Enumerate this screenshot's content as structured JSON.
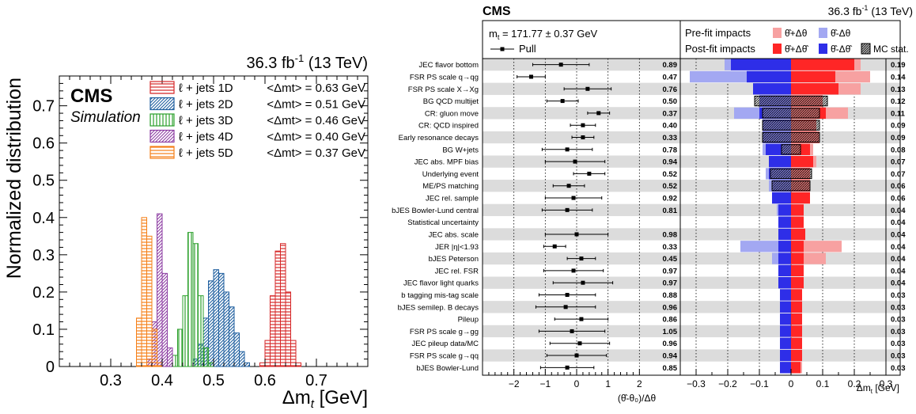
{
  "chart_data": [
    {
      "type": "histogram",
      "experiment": "CMS",
      "subtitle": "Simulation",
      "lumi": "36.3 fb",
      "lumi_exp": "-1",
      "energy": " (13 TeV)",
      "ylabel": "Normalized distribution",
      "xlabel_main": "Δm",
      "xlabel_sub": "t",
      "xlabel_unit": " [GeV]",
      "xlim": [
        0.2,
        0.8
      ],
      "ylim": [
        0,
        0.78
      ],
      "xticks": [
        "0.3",
        "0.4",
        "0.5",
        "0.6",
        "0.7"
      ],
      "yticks": [
        "0",
        "0.1",
        "0.2",
        "0.3",
        "0.4",
        "0.5",
        "0.6",
        "0.7"
      ],
      "legend_placement": "top-right",
      "series": [
        {
          "name": "ℓ + jets 1D",
          "dim": "1D",
          "summary": "<Δmt> =  0.63 GeV",
          "color": "#d62728",
          "hatch": "horizontal",
          "bins": [
            [
              0.595,
              0.01
            ],
            [
              0.605,
              0.07
            ],
            [
              0.615,
              0.19
            ],
            [
              0.625,
              0.31
            ],
            [
              0.635,
              0.33
            ],
            [
              0.645,
              0.2
            ],
            [
              0.655,
              0.07
            ],
            [
              0.665,
              0.01
            ]
          ]
        },
        {
          "name": "ℓ + jets 2D",
          "dim": "2D",
          "summary": "<Δmt> =  0.51 GeV",
          "color": "#1f5f9f",
          "hatch": "diagonal",
          "bins": [
            [
              0.465,
              0.02
            ],
            [
              0.475,
              0.06
            ],
            [
              0.485,
              0.13
            ],
            [
              0.495,
              0.23
            ],
            [
              0.505,
              0.26
            ],
            [
              0.515,
              0.25
            ],
            [
              0.525,
              0.2
            ],
            [
              0.535,
              0.16
            ],
            [
              0.545,
              0.09
            ],
            [
              0.555,
              0.04
            ],
            [
              0.565,
              0.01
            ]
          ]
        },
        {
          "name": "ℓ + jets 3D",
          "dim": "3D",
          "summary": "<Δmt> =  0.46 GeV",
          "color": "#2ca02c",
          "hatch": "vertical",
          "bins": [
            [
              0.425,
              0.03
            ],
            [
              0.435,
              0.1
            ],
            [
              0.445,
              0.19
            ],
            [
              0.455,
              0.36
            ],
            [
              0.465,
              0.33
            ],
            [
              0.475,
              0.19
            ],
            [
              0.485,
              0.05
            ],
            [
              0.495,
              0.01
            ]
          ]
        },
        {
          "name": "ℓ + jets 4D",
          "dim": "4D",
          "summary": "<Δmt> =  0.40 GeV",
          "color": "#8e3fa3",
          "hatch": "diagonal",
          "bins": [
            [
              0.375,
              0.02
            ],
            [
              0.385,
              0.12
            ],
            [
              0.395,
              0.41
            ],
            [
              0.405,
              0.25
            ],
            [
              0.415,
              0.05
            ]
          ]
        },
        {
          "name": "ℓ + jets 5D",
          "dim": "5D",
          "summary": "<Δmt> =  0.37 GeV",
          "color": "#f57f17",
          "hatch": "horizontal",
          "bins": [
            [
              0.355,
              0.13
            ],
            [
              0.365,
              0.4
            ],
            [
              0.375,
              0.35
            ],
            [
              0.385,
              0.1
            ],
            [
              0.395,
              0.01
            ]
          ]
        }
      ]
    },
    {
      "type": "impacts",
      "experiment": "CMS",
      "lumi": "36.3 fb",
      "lumi_exp": "-1",
      "energy": " (13 TeV)",
      "mt_result": "m",
      "mt_result_sub": "t",
      "mt_result_value": " = 171.77 ± 0.37 GeV",
      "pull_legend": "Pull",
      "prefit_label": "Pre-fit impacts",
      "postfit_label": "Post-fit impacts",
      "legend_prefit_up": "θ̂+Δθ",
      "legend_prefit_down": "θ̂-Δθ",
      "legend_postfit_up": "θ̂+Δθ̂",
      "legend_postfit_down": "θ̂-Δθ̂",
      "legend_mcstat": "MC stat.",
      "pull_xlabel": "(θ̂-θ₀)/Δθ",
      "pull_xlim": [
        -3,
        3
      ],
      "pull_xticks": [
        "−2",
        "−1",
        "0",
        "1",
        "2"
      ],
      "impact_xlabel": "Δm",
      "impact_xlabel_sub": "t",
      "impact_xlabel_unit": " [GeV]",
      "impact_xlim": [
        -0.35,
        0.3
      ],
      "impact_xticks": [
        "−0.3",
        "−0.2",
        "−0.1",
        "0",
        "0.1",
        "0.2",
        "0.3"
      ],
      "colors": {
        "prefit_up": "#f7a1a1",
        "prefit_down": "#a3a8f2",
        "postfit_up": "#ff2626",
        "postfit_down": "#2e2ee8",
        "mcstat": "#a8a8a8",
        "band": "#dcdcdc"
      },
      "rows": [
        {
          "name": "JEC flavor bottom",
          "pull": -0.5,
          "pull_lo": 0.9,
          "pull_hi": 0.9,
          "constraint": "0.89",
          "pre_up": 0.22,
          "pre_down": -0.21,
          "post_up": 0.2,
          "post_down": -0.19,
          "mc_stat": 0,
          "impact": "0.19"
        },
        {
          "name": "FSR PS scale q→qg",
          "pull": -1.45,
          "pull_lo": 0.45,
          "pull_hi": 0.45,
          "constraint": "0.47",
          "pre_up": 0.25,
          "pre_down": -0.32,
          "post_up": 0.14,
          "post_down": -0.14,
          "mc_stat": 0,
          "impact": "0.14"
        },
        {
          "name": "FSR PS scale X→Xg",
          "pull": 0.35,
          "pull_lo": 0.75,
          "pull_hi": 0.75,
          "constraint": "0.76",
          "pre_up": 0.22,
          "pre_down": -0.11,
          "post_up": 0.15,
          "post_down": -0.12,
          "mc_stat": 0,
          "impact": "0.13"
        },
        {
          "name": "BG QCD multijet",
          "pull": -0.45,
          "pull_lo": 0.5,
          "pull_hi": 0.5,
          "constraint": "0.50",
          "pre_up": 0.1,
          "pre_down": -0.1,
          "post_up": 0.1,
          "post_down": -0.1,
          "mc_stat": 0.115,
          "impact": "0.12"
        },
        {
          "name": "CR: gluon move",
          "pull": 0.7,
          "pull_lo": 0.35,
          "pull_hi": 0.35,
          "constraint": "0.37",
          "pre_up": 0.18,
          "pre_down": -0.18,
          "post_up": 0.11,
          "post_down": -0.1,
          "mc_stat": 0.09,
          "impact": "0.11"
        },
        {
          "name": "CR: QCD inspired",
          "pull": 0.2,
          "pull_lo": 0.4,
          "pull_hi": 0.4,
          "constraint": "0.40",
          "pre_up": 0.08,
          "pre_down": -0.09,
          "post_up": 0.08,
          "post_down": -0.09,
          "mc_stat": 0.09,
          "impact": "0.09"
        },
        {
          "name": "Early resonance decays",
          "pull": 0.2,
          "pull_lo": 0.35,
          "pull_hi": 0.35,
          "constraint": "0.33",
          "pre_up": 0.09,
          "pre_down": -0.09,
          "post_up": 0.09,
          "post_down": -0.09,
          "mc_stat": 0.09,
          "impact": "0.09"
        },
        {
          "name": "BG W+jets",
          "pull": -0.3,
          "pull_lo": 0.8,
          "pull_hi": 0.8,
          "constraint": "0.78",
          "pre_up": 0.07,
          "pre_down": -0.09,
          "post_up": 0.06,
          "post_down": -0.08,
          "mc_stat": 0.03,
          "impact": "0.08"
        },
        {
          "name": "JEC abs. MPF bias",
          "pull": -0.05,
          "pull_lo": 0.95,
          "pull_hi": 0.95,
          "constraint": "0.94",
          "pre_up": 0.08,
          "pre_down": -0.07,
          "post_up": 0.07,
          "post_down": -0.07,
          "mc_stat": 0,
          "impact": "0.07"
        },
        {
          "name": "Underlying event",
          "pull": 0.4,
          "pull_lo": 0.5,
          "pull_hi": 0.5,
          "constraint": "0.52",
          "pre_up": 0.06,
          "pre_down": -0.08,
          "post_up": 0.06,
          "post_down": -0.07,
          "mc_stat": 0.065,
          "impact": "0.07"
        },
        {
          "name": "ME/PS matching",
          "pull": -0.25,
          "pull_lo": 0.5,
          "pull_hi": 0.5,
          "constraint": "0.52",
          "pre_up": 0.06,
          "pre_down": -0.07,
          "post_up": 0.06,
          "post_down": -0.06,
          "mc_stat": 0.06,
          "impact": "0.06"
        },
        {
          "name": "JEC rel. sample",
          "pull": -0.1,
          "pull_lo": 0.9,
          "pull_hi": 0.9,
          "constraint": "0.92",
          "pre_up": 0.06,
          "pre_down": -0.06,
          "post_up": 0.06,
          "post_down": -0.06,
          "mc_stat": 0,
          "impact": "0.06"
        },
        {
          "name": "bJES Bowler-Lund central",
          "pull": -0.3,
          "pull_lo": 0.8,
          "pull_hi": 0.8,
          "constraint": "0.81",
          "pre_up": 0.04,
          "pre_down": -0.045,
          "post_up": 0.04,
          "post_down": -0.04,
          "mc_stat": 0,
          "impact": "0.04"
        },
        {
          "name": "Statistical uncertainty",
          "pull": null,
          "pull_lo": 0,
          "pull_hi": 0,
          "constraint": "",
          "pre_up": 0.04,
          "pre_down": -0.04,
          "post_up": 0.04,
          "post_down": -0.04,
          "mc_stat": 0,
          "impact": "0.04"
        },
        {
          "name": "JEC abs. scale",
          "pull": 0.0,
          "pull_lo": 1.0,
          "pull_hi": 1.0,
          "constraint": "0.98",
          "pre_up": 0.045,
          "pre_down": -0.04,
          "post_up": 0.045,
          "post_down": -0.04,
          "mc_stat": 0,
          "impact": "0.04"
        },
        {
          "name": "JER |η|<1.93",
          "pull": -0.7,
          "pull_lo": 0.35,
          "pull_hi": 0.35,
          "constraint": "0.33",
          "pre_up": 0.16,
          "pre_down": -0.16,
          "post_up": 0.04,
          "post_down": -0.04,
          "mc_stat": 0,
          "impact": "0.04"
        },
        {
          "name": "bJES Peterson",
          "pull": 0.15,
          "pull_lo": 0.45,
          "pull_hi": 0.45,
          "constraint": "0.45",
          "pre_up": 0.11,
          "pre_down": -0.06,
          "post_up": 0.04,
          "post_down": -0.04,
          "mc_stat": 0,
          "impact": "0.04"
        },
        {
          "name": "JEC rel. FSR",
          "pull": -0.1,
          "pull_lo": 0.95,
          "pull_hi": 0.95,
          "constraint": "0.97",
          "pre_up": 0.04,
          "pre_down": -0.04,
          "post_up": 0.04,
          "post_down": -0.04,
          "mc_stat": 0,
          "impact": "0.04"
        },
        {
          "name": "JEC flavor light quarks",
          "pull": 0.2,
          "pull_lo": 0.95,
          "pull_hi": 0.95,
          "constraint": "0.97",
          "pre_up": 0.04,
          "pre_down": -0.04,
          "post_up": 0.04,
          "post_down": -0.04,
          "mc_stat": 0,
          "impact": "0.04"
        },
        {
          "name": "b tagging mis-tag scale",
          "pull": -0.3,
          "pull_lo": 0.9,
          "pull_hi": 0.9,
          "constraint": "0.88",
          "pre_up": 0.035,
          "pre_down": -0.035,
          "post_up": 0.035,
          "post_down": -0.035,
          "mc_stat": 0,
          "impact": "0.03"
        },
        {
          "name": "bJES semilep. B decays",
          "pull": -0.35,
          "pull_lo": 0.95,
          "pull_hi": 0.95,
          "constraint": "0.96",
          "pre_up": 0.035,
          "pre_down": -0.035,
          "post_up": 0.035,
          "post_down": -0.035,
          "mc_stat": 0,
          "impact": "0.03"
        },
        {
          "name": "Pileup",
          "pull": 0.15,
          "pull_lo": 0.85,
          "pull_hi": 0.85,
          "constraint": "0.86",
          "pre_up": 0.035,
          "pre_down": -0.035,
          "post_up": 0.035,
          "post_down": -0.035,
          "mc_stat": 0,
          "impact": "0.03"
        },
        {
          "name": "FSR PS scale g→gg",
          "pull": -0.15,
          "pull_lo": 1.05,
          "pull_hi": 1.05,
          "constraint": "1.05",
          "pre_up": 0.035,
          "pre_down": -0.035,
          "post_up": 0.035,
          "post_down": -0.035,
          "mc_stat": 0,
          "impact": "0.03"
        },
        {
          "name": "JEC pileup data/MC",
          "pull": 0.1,
          "pull_lo": 0.95,
          "pull_hi": 0.95,
          "constraint": "0.96",
          "pre_up": 0.035,
          "pre_down": -0.035,
          "post_up": 0.035,
          "post_down": -0.035,
          "mc_stat": 0,
          "impact": "0.03"
        },
        {
          "name": "FSR PS scale g→qq",
          "pull": 0.0,
          "pull_lo": 0.95,
          "pull_hi": 0.95,
          "constraint": "0.94",
          "pre_up": 0.035,
          "pre_down": -0.035,
          "post_up": 0.035,
          "post_down": -0.035,
          "mc_stat": 0,
          "impact": "0.03"
        },
        {
          "name": "bJES Bowler-Lund",
          "pull": -0.3,
          "pull_lo": 0.85,
          "pull_hi": 0.85,
          "constraint": "0.85",
          "pre_up": 0.035,
          "pre_down": -0.035,
          "post_up": 0.03,
          "post_down": -0.035,
          "mc_stat": 0,
          "impact": "0.03"
        }
      ]
    }
  ]
}
